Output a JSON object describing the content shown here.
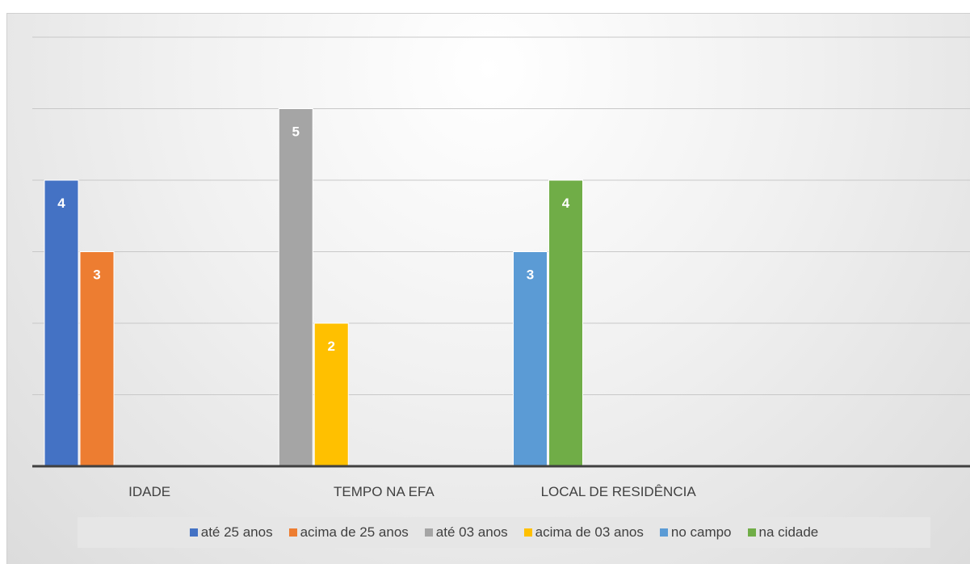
{
  "chart_data": {
    "type": "bar",
    "categories": [
      "IDADE",
      "TEMPO NA EFA",
      "LOCAL DE RESIDÊNCIA",
      ""
    ],
    "series": [
      {
        "name": "até 25 anos",
        "color": "#4472c4",
        "values": [
          4,
          null,
          null,
          null
        ]
      },
      {
        "name": "acima de 25 anos",
        "color": "#ed7d31",
        "values": [
          3,
          null,
          null,
          null
        ]
      },
      {
        "name": "até 03 anos",
        "color": "#a5a5a5",
        "values": [
          null,
          5,
          null,
          null
        ]
      },
      {
        "name": "acima de 03 anos",
        "color": "#ffc000",
        "values": [
          null,
          2,
          null,
          null
        ]
      },
      {
        "name": "no campo",
        "color": "#5b9bd5",
        "values": [
          null,
          null,
          3,
          null
        ]
      },
      {
        "name": "na cidade",
        "color": "#70ad47",
        "values": [
          null,
          null,
          4,
          null
        ]
      }
    ],
    "ylim": [
      0,
      6
    ],
    "grid": true,
    "legend_position": "bottom",
    "data_labels": true
  }
}
